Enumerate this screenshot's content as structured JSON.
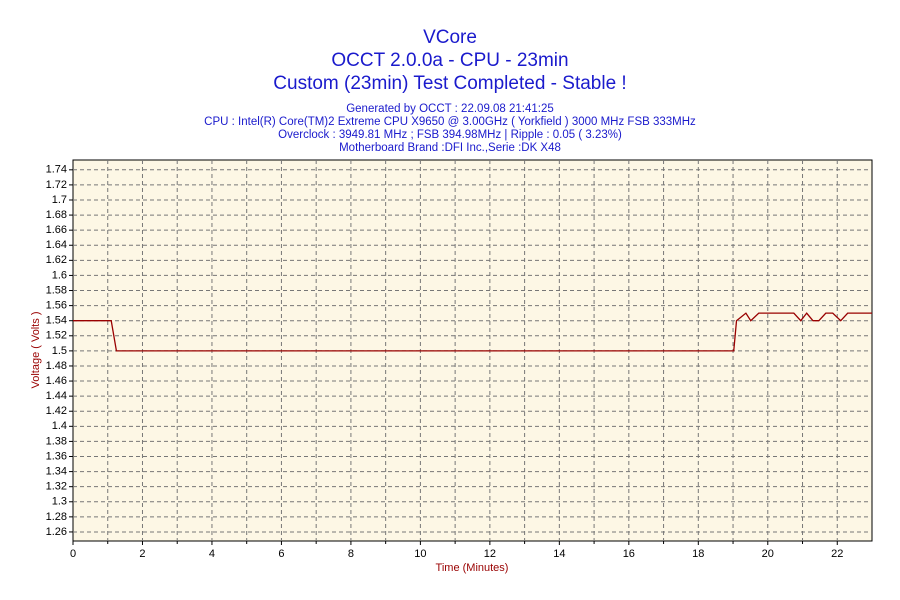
{
  "chart_data": {
    "type": "line",
    "title": "VCore",
    "subtitle": "OCCT 2.0.0a - CPU - 23min",
    "status": "Custom (23min) Test Completed - Stable !",
    "info_lines": [
      "Generated by OCCT : 22.09.08 21:41:25",
      "CPU : Intel(R) Core(TM)2 Extreme CPU X9650 @ 3.00GHz ( Yorkfield ) 3000 MHz FSB 333MHz",
      "Overclock : 3949.81 MHz ; FSB 394.98MHz | Ripple : 0.05 ( 3.23%)",
      "Motherboard Brand :DFI Inc.,Serie :DK X48"
    ],
    "x_label": "Time (Minutes)",
    "y_label": "Voltage ( Volts )",
    "x": [
      0,
      1.1,
      1.25,
      19.02,
      19.1,
      19.37,
      19.51,
      19.74,
      20.75,
      20.95,
      21.12,
      21.3,
      21.47,
      21.67,
      21.87,
      22.1,
      22.3,
      23
    ],
    "series": [
      {
        "name": "VCore",
        "color": "#990000",
        "values": [
          1.54,
          1.54,
          1.5,
          1.5,
          1.54,
          1.55,
          1.54,
          1.55,
          1.55,
          1.54,
          1.55,
          1.54,
          1.54,
          1.55,
          1.55,
          1.54,
          1.55,
          1.55
        ]
      }
    ],
    "xlim": [
      0,
      23
    ],
    "xticks": [
      0,
      2,
      4,
      6,
      8,
      10,
      12,
      14,
      16,
      18,
      20,
      22
    ],
    "x_minor_ticks": [
      1,
      3,
      5,
      7,
      9,
      11,
      13,
      15,
      17,
      19,
      21
    ],
    "ylim": [
      1.248,
      1.753
    ],
    "yticks": [
      1.26,
      1.28,
      1.3,
      1.32,
      1.34,
      1.36,
      1.38,
      1.4,
      1.42,
      1.44,
      1.46,
      1.48,
      1.5,
      1.52,
      1.54,
      1.56,
      1.58,
      1.6,
      1.62,
      1.64,
      1.66,
      1.68,
      1.7,
      1.72,
      1.74
    ],
    "grid": true
  }
}
